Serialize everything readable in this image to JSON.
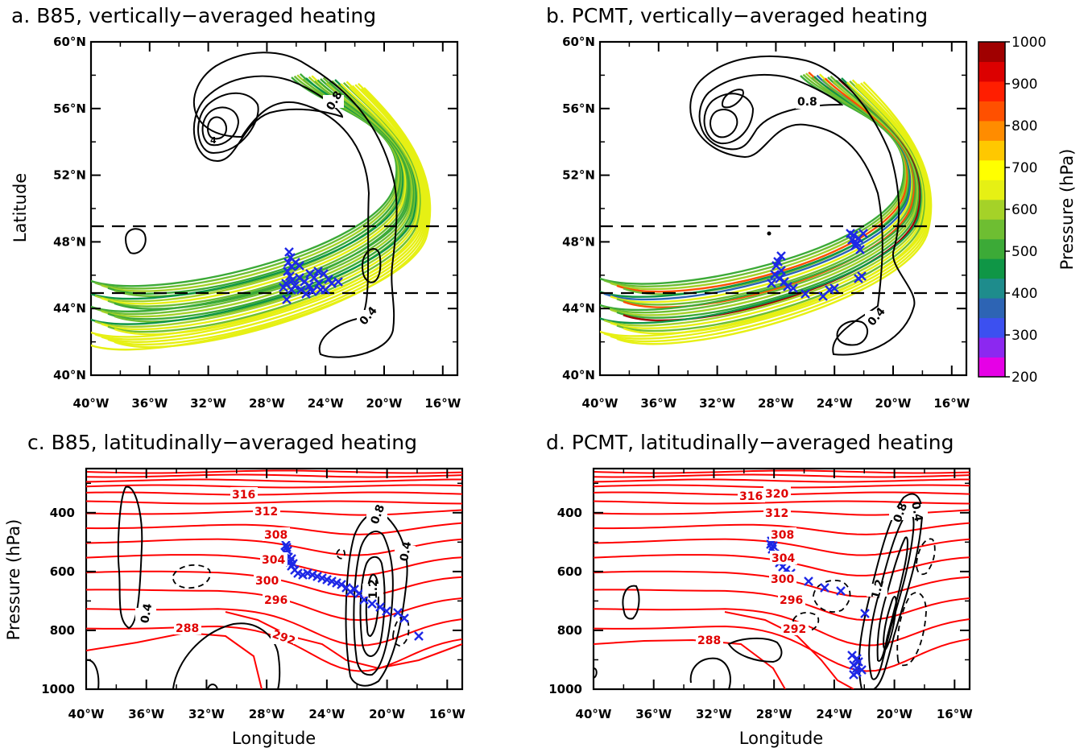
{
  "chart_data": [
    {
      "panel": "a",
      "type": "contour",
      "title": "a. B85, vertically−averaged heating",
      "xlabel": "",
      "ylabel": "Latitude",
      "x_ticks": [
        "40°W",
        "36°W",
        "32°W",
        "28°W",
        "24°W",
        "20°W",
        "16°W"
      ],
      "y_ticks": [
        "40°N",
        "44°N",
        "48°N",
        "52°N",
        "56°N",
        "60°N"
      ],
      "xlim": [
        -40,
        -15
      ],
      "ylim": [
        40,
        60
      ],
      "dashed_lines_lat": [
        45,
        49
      ],
      "contour_labels": [
        "0.8",
        "0.4",
        "4"
      ],
      "marker": "x"
    },
    {
      "panel": "b",
      "type": "contour",
      "title": "b. PCMT, vertically−averaged heating",
      "xlabel": "",
      "ylabel": "",
      "x_ticks": [
        "40°W",
        "36°W",
        "32°W",
        "28°W",
        "24°W",
        "20°W",
        "16°W"
      ],
      "y_ticks": [
        "40°N",
        "44°N",
        "48°N",
        "52°N",
        "56°N",
        "60°N"
      ],
      "xlim": [
        -40,
        -15
      ],
      "ylim": [
        40,
        60
      ],
      "dashed_lines_lat": [
        45,
        49
      ],
      "contour_labels": [
        "0.8",
        "0.4"
      ],
      "marker": "x"
    },
    {
      "panel": "c",
      "type": "contour",
      "title": "c. B85, latitudinally−averaged heating",
      "xlabel": "Longitude",
      "ylabel": "Pressure (hPa)",
      "x_ticks": [
        "40°W",
        "36°W",
        "32°W",
        "28°W",
        "24°W",
        "20°W",
        "16°W"
      ],
      "y_ticks": [
        "400",
        "600",
        "800",
        "1000"
      ],
      "xlim": [
        -40,
        -15
      ],
      "ylim": [
        1000,
        250
      ],
      "isentrope_labels": [
        "316",
        "312",
        "308",
        "304",
        "300",
        "296",
        "292",
        "288"
      ],
      "contour_labels": [
        "0.8",
        "0.4",
        "0.4",
        "1.2"
      ],
      "marker": "x"
    },
    {
      "panel": "d",
      "type": "contour",
      "title": "d. PCMT, latitudinally−averaged heating",
      "xlabel": "Longitude",
      "ylabel": "",
      "x_ticks": [
        "40°W",
        "36°W",
        "32°W",
        "28°W",
        "24°W",
        "20°W",
        "16°W"
      ],
      "y_ticks": [
        "400",
        "600",
        "800",
        "1000"
      ],
      "xlim": [
        -40,
        -15
      ],
      "ylim": [
        1000,
        250
      ],
      "isentrope_labels": [
        "316",
        "320",
        "312",
        "308",
        "304",
        "300",
        "296",
        "292",
        "288"
      ],
      "contour_labels": [
        "0.8",
        "0.4",
        "1.2"
      ],
      "marker": "x"
    }
  ],
  "colorbar": {
    "label": "Pressure (hPa)",
    "ticks": [
      "200",
      "300",
      "400",
      "500",
      "600",
      "700",
      "800",
      "900",
      "1000"
    ],
    "colors": [
      "#e600e6",
      "#8c28f0",
      "#3c50f0",
      "#2d64b4",
      "#1e8c8c",
      "#0f9646",
      "#3caa37",
      "#6ebe32",
      "#a5d228",
      "#e6f014",
      "#ffff00",
      "#ffc800",
      "#ff8c00",
      "#ff5000",
      "#ff1e00",
      "#dc0000",
      "#a00000"
    ]
  },
  "colors": {
    "heating_contour": "#000000",
    "isentrope": "#ff0000",
    "marker": "#1e28e6",
    "dashed_box": "#000000"
  }
}
